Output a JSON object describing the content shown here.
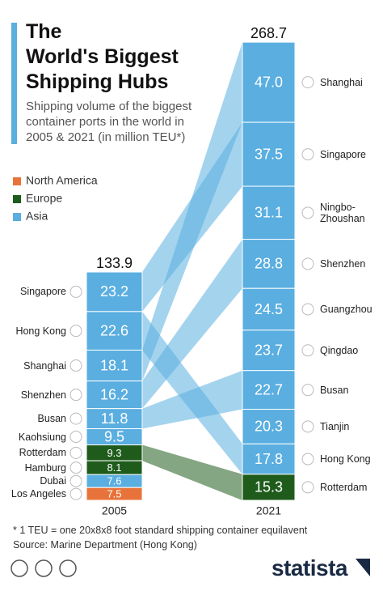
{
  "chart_data": {
    "type": "flow",
    "title": "The\nWorld's Biggest\nShipping Hubs",
    "subtitle": "Shipping volume of the biggest\ncontainer ports in the world in\n2005 & 2021 (in million TEU*)",
    "legend": [
      {
        "name": "North America",
        "color": "#e8733a"
      },
      {
        "name": "Europe",
        "color": "#1f5c1c"
      },
      {
        "name": "Asia",
        "color": "#5aaee0"
      }
    ],
    "columns": [
      {
        "label": "2005",
        "total": 133.9,
        "names": [
          "Singapore",
          "Hong Kong",
          "Shanghai",
          "Shenzhen",
          "Busan",
          "Kaohsiung",
          "Rotterdam",
          "Hamburg",
          "Dubai",
          "Los Angeles"
        ],
        "values": [
          23.2,
          22.6,
          18.1,
          16.2,
          11.8,
          9.5,
          9.3,
          8.1,
          7.6,
          7.5
        ],
        "regions": [
          "Asia",
          "Asia",
          "Asia",
          "Asia",
          "Asia",
          "Asia",
          "Europe",
          "Europe",
          "Asia",
          "North America"
        ]
      },
      {
        "label": "2021",
        "total": 268.7,
        "names": [
          "Shanghai",
          "Singapore",
          "Ningbo-Zhoushan",
          "Shenzhen",
          "Guangzhou",
          "Qingdao",
          "Busan",
          "Tianjin",
          "Hong Kong",
          "Rotterdam"
        ],
        "values": [
          47,
          37.5,
          31.1,
          28.8,
          24.5,
          23.7,
          22.7,
          20.3,
          17.8,
          15.3
        ],
        "value_labels": [
          "47.0",
          "37.5",
          "31.1",
          "28.8",
          "24.5",
          "23.7",
          "22.7",
          "20.3",
          "17.8",
          "15.3"
        ],
        "regions": [
          "Asia",
          "Asia",
          "Asia",
          "Asia",
          "Asia",
          "Asia",
          "Asia",
          "Asia",
          "Asia",
          "Europe"
        ]
      }
    ],
    "note": "* 1 TEU = one 20x8x8 foot standard shipping container equilavent",
    "source": "Source: Marine Department (Hong Kong)",
    "brand": "statista"
  }
}
